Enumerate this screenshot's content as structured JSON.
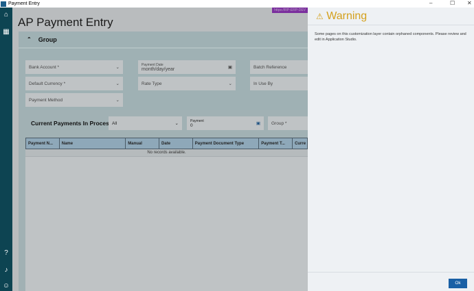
{
  "window": {
    "title": "Payment Entry",
    "min": "–",
    "max": "☐",
    "close": "✕"
  },
  "sidebar": {
    "icons": [
      "home-icon",
      "apps-grid-icon",
      "help-icon",
      "bell-icon",
      "user-icon"
    ]
  },
  "main": {
    "url": "https://RP-ERP-DEV",
    "title": "AP Payment Entry",
    "group": {
      "label": "Group",
      "fields": {
        "bank_account": "Bank Account *",
        "payment_date_label": "Payment Date",
        "payment_date_placeholder": "month/day/year",
        "batch_reference": "Batch Reference",
        "default_currency": "Default Currency *",
        "rate_type": "Rate Type",
        "in_use_by": "In Use By",
        "payment_method": "Payment Method"
      }
    },
    "current": {
      "title": "Current Payments In Process",
      "filter": "All",
      "payment_label": "Payment",
      "payment_value": "0",
      "group": "Group *",
      "columns": [
        "Payment N...",
        "Name",
        "Manual",
        "Date",
        "Payment Document Type",
        "Payment T...",
        "Curre"
      ],
      "empty": "No records available."
    }
  },
  "dialog": {
    "title": "Warning",
    "message": "Some pages on this customization layer contain orphaned components. Please review and edit in Application Studio.",
    "ok": "Ok",
    "accent": "#d4a01c"
  }
}
